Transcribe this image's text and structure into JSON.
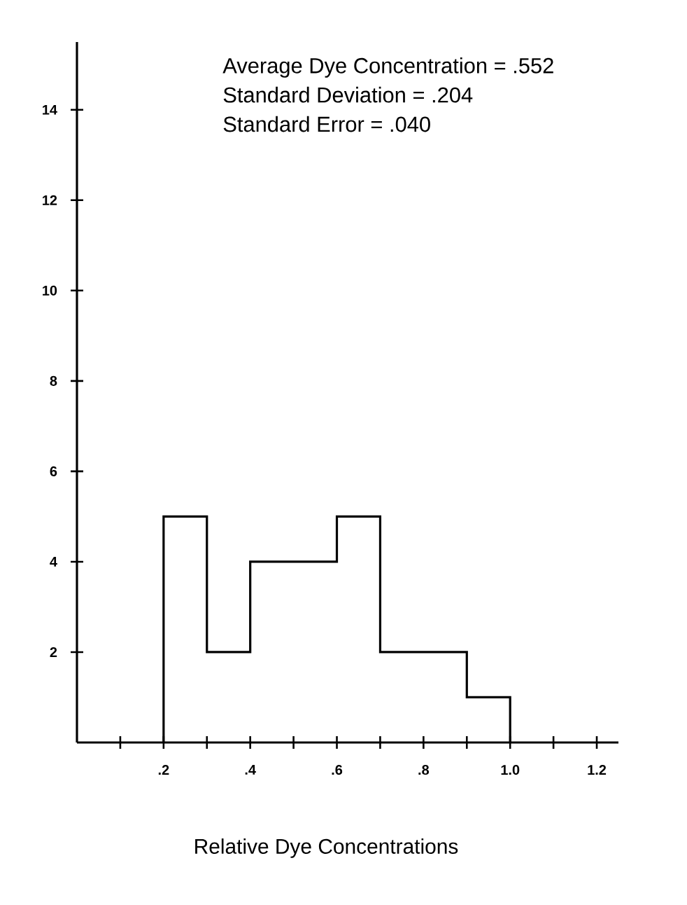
{
  "chart_data": {
    "type": "histogram",
    "xlabel": "Relative Dye Concentrations",
    "annotations": [
      "Average Dye Concentration = .552",
      "Standard Deviation = .204",
      "Standard Error = .040"
    ],
    "bins": [
      0.2,
      0.3,
      0.4,
      0.5,
      0.6,
      0.7,
      0.8,
      0.9,
      1.0
    ],
    "values": [
      5,
      2,
      4,
      4,
      5,
      2,
      2,
      1
    ],
    "color": "#000000",
    "xlim": [
      0,
      1.25
    ],
    "ylim": [
      0,
      15.5
    ],
    "xticks": [
      {
        "value": 0.1,
        "label": null
      },
      {
        "value": 0.2,
        "label": ".2"
      },
      {
        "value": 0.3,
        "label": null
      },
      {
        "value": 0.4,
        "label": ".4"
      },
      {
        "value": 0.5,
        "label": null
      },
      {
        "value": 0.6,
        "label": ".6"
      },
      {
        "value": 0.7,
        "label": null
      },
      {
        "value": 0.8,
        "label": ".8"
      },
      {
        "value": 0.9,
        "label": null
      },
      {
        "value": 1.0,
        "label": "1.0"
      },
      {
        "value": 1.1,
        "label": null
      },
      {
        "value": 1.2,
        "label": "1.2"
      }
    ],
    "yticks": [
      2,
      4,
      6,
      8,
      10,
      12,
      14
    ]
  }
}
